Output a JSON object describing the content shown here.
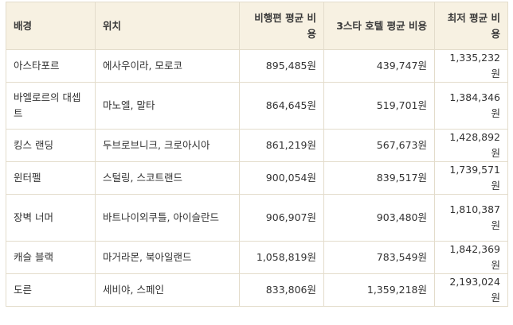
{
  "table": {
    "headers": {
      "background": "배경",
      "location": "위치",
      "flight_cost": "비행편 평균 비용",
      "hotel_cost": "3스타 호텔 평균 비용",
      "min_cost": "최저 평균 비용"
    },
    "rows": [
      {
        "background": "아스타포르",
        "location": "에사우이라, 모로코",
        "flight_cost": "895,485원",
        "hotel_cost": "439,747원",
        "min_cost": "1,335,232원"
      },
      {
        "background": "바엘로르의 대셉트",
        "location": "마노엘, 말타",
        "flight_cost": "864,645원",
        "hotel_cost": "519,701원",
        "min_cost": "1,384,346원"
      },
      {
        "background": "킹스 랜딩",
        "location": "두브로브니크, 크로아시아",
        "flight_cost": "861,219원",
        "hotel_cost": "567,673원",
        "min_cost": "1,428,892원"
      },
      {
        "background": "윈터펠",
        "location": "스털링, 스코트랜드",
        "flight_cost": "900,054원",
        "hotel_cost": "839,517원",
        "min_cost": "1,739,571원"
      },
      {
        "background": "장벽 너머",
        "location": "바트나이외쿠틀, 아이슬란드",
        "flight_cost": "906,907원",
        "hotel_cost": "903,480원",
        "min_cost": "1,810,387원"
      },
      {
        "background": "캐슬 블랙",
        "location": "마거라몬, 북아일랜드",
        "flight_cost": "1,058,819원",
        "hotel_cost": "783,549원",
        "min_cost": "1,842,369원"
      },
      {
        "background": "도른",
        "location": "세비야, 스페인",
        "flight_cost": "833,806원",
        "hotel_cost": "1,359,218원",
        "min_cost": "2,193,024원"
      }
    ]
  }
}
